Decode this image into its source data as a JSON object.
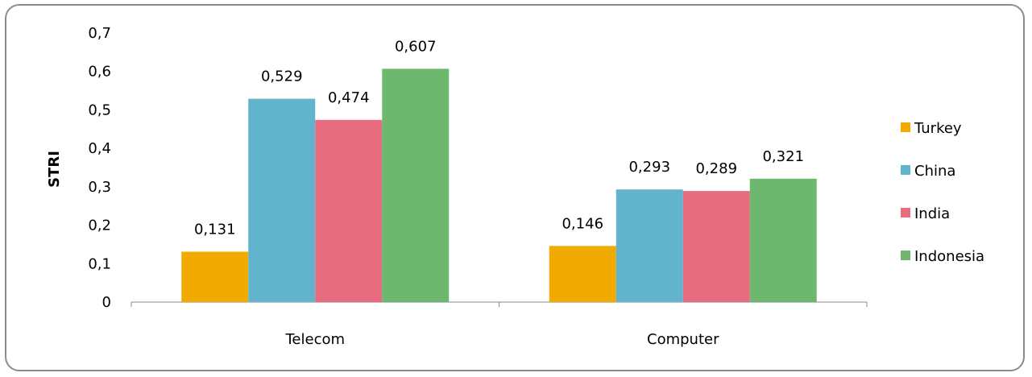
{
  "chart_data": {
    "type": "bar",
    "categories": [
      "Telecom",
      "Computer"
    ],
    "series": [
      {
        "name": "Turkey",
        "values": [
          0.131,
          0.146
        ],
        "labels": [
          "0,131",
          "0,146"
        ],
        "color": "#f0aa00"
      },
      {
        "name": "China",
        "values": [
          0.529,
          0.293
        ],
        "labels": [
          "0,529",
          "0,293"
        ],
        "color": "#62b4cc"
      },
      {
        "name": "India",
        "values": [
          0.474,
          0.289
        ],
        "labels": [
          "0,474",
          "0,289"
        ],
        "color": "#e76c80"
      },
      {
        "name": "Indonesia",
        "values": [
          0.607,
          0.321
        ],
        "labels": [
          "0,607",
          "0,321"
        ],
        "color": "#6db76f"
      }
    ],
    "yticks": [
      0,
      0.1,
      0.2,
      0.3,
      0.4,
      0.5,
      0.6,
      0.7
    ],
    "ytick_labels": [
      "0",
      "0,1",
      "0,2",
      "0,3",
      "0,4",
      "0,5",
      "0,6",
      "0,7"
    ],
    "ylim": [
      0,
      0.7
    ],
    "ylabel": "STRI",
    "xlabel": "",
    "grid": false,
    "legend": "right"
  }
}
